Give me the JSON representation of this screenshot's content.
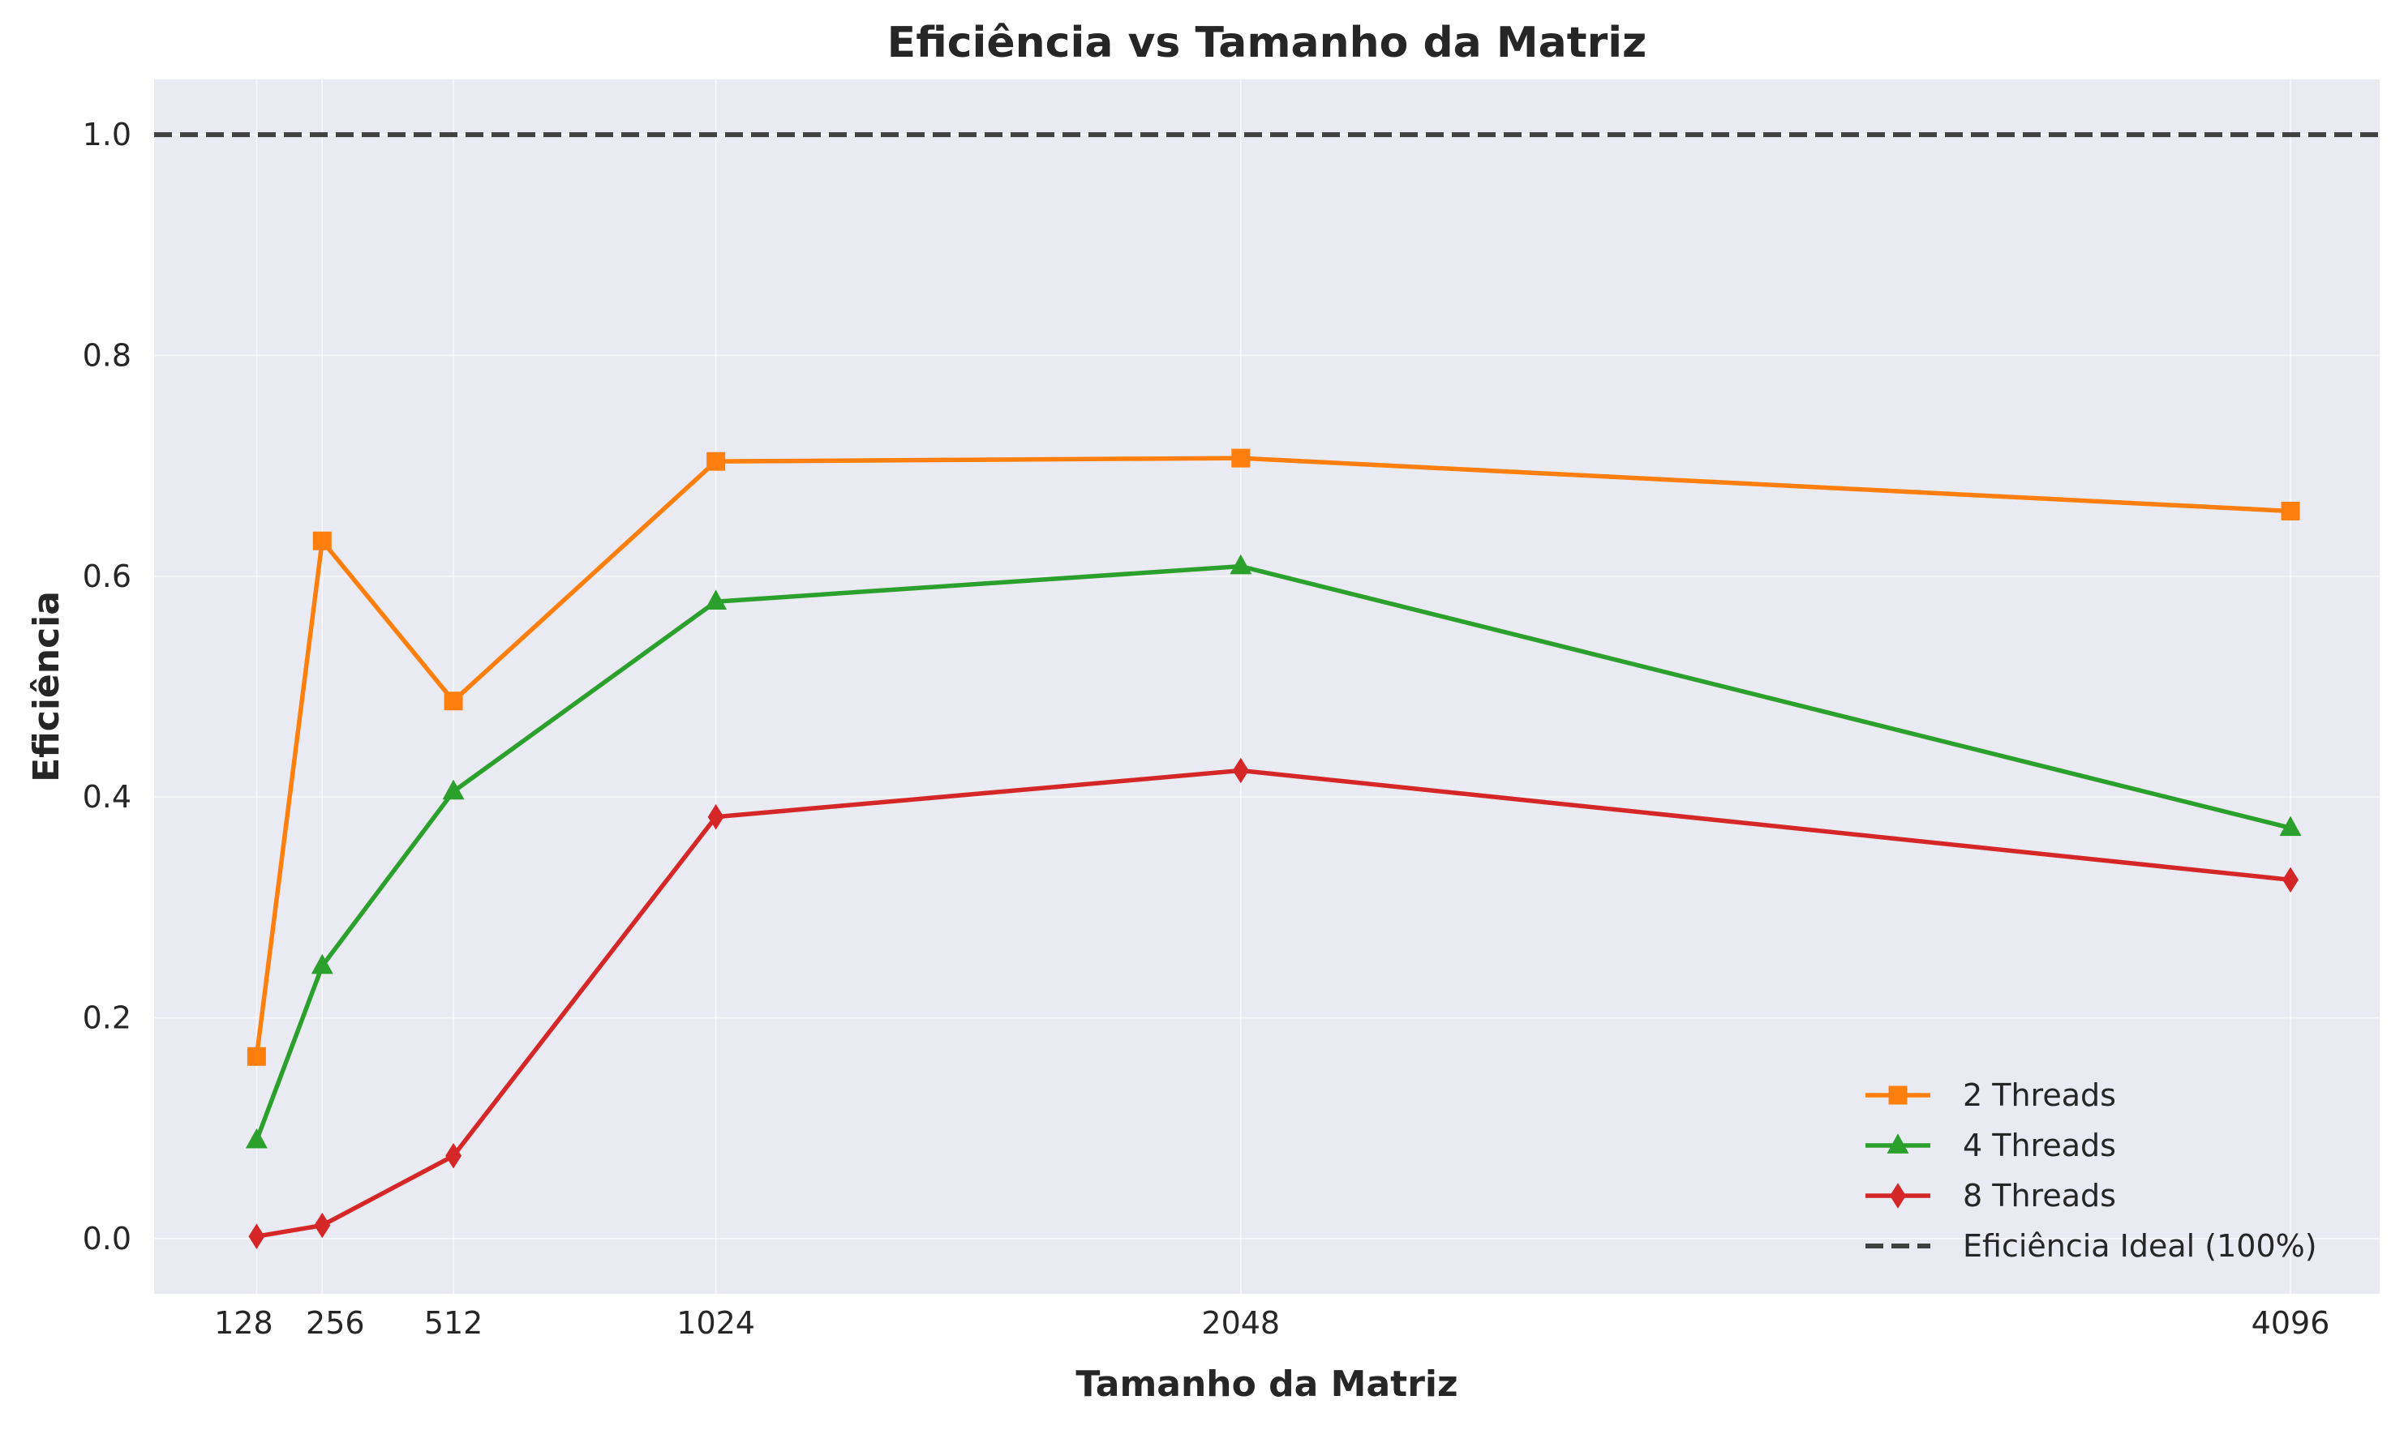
{
  "chart_data": {
    "type": "line",
    "title": "Eficiência vs Tamanho da Matriz",
    "xlabel": "Tamanho da Matriz",
    "ylabel": "Eficiência",
    "x": [
      128,
      256,
      512,
      1024,
      2048,
      4096
    ],
    "x_tick_labels": [
      "128",
      "256",
      "512",
      "1024",
      "2048",
      "4096"
    ],
    "y_ticks": [
      0.0,
      0.2,
      0.4,
      0.6,
      0.8,
      1.0
    ],
    "y_tick_labels": [
      "0.0",
      "0.2",
      "0.4",
      "0.6",
      "0.8",
      "1.0"
    ],
    "xlim": [
      -72,
      4270
    ],
    "ylim": [
      -0.05,
      1.05
    ],
    "grid": true,
    "legend_position": "lower-right",
    "series": [
      {
        "name": "2 Threads",
        "color": "#ff7f0e",
        "marker": "square",
        "values": [
          0.165,
          0.632,
          0.487,
          0.704,
          0.707,
          0.659
        ]
      },
      {
        "name": "4 Threads",
        "color": "#2ca02c",
        "marker": "triangle",
        "values": [
          0.089,
          0.247,
          0.405,
          0.577,
          0.609,
          0.372
        ]
      },
      {
        "name": "8 Threads",
        "color": "#d62728",
        "marker": "diamond",
        "values": [
          0.002,
          0.012,
          0.075,
          0.382,
          0.424,
          0.325
        ]
      }
    ],
    "reference_line": {
      "name": "Eficiência Ideal (100%)",
      "y": 1.0,
      "color": "#404040",
      "style": "dashed"
    }
  }
}
